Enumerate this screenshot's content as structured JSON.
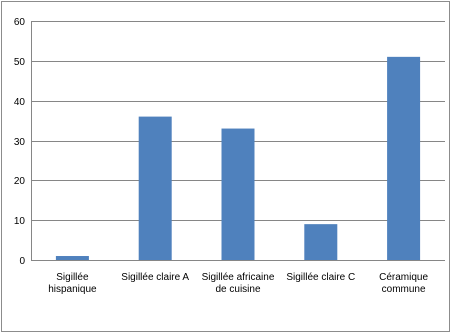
{
  "chart_data": {
    "type": "bar",
    "categories": [
      [
        "Sigillée",
        "hispanique"
      ],
      [
        "Sigillée claire A"
      ],
      [
        "Sigillée africaine",
        "de cuisine"
      ],
      [
        "Sigillée claire C"
      ],
      [
        "Céramique",
        "commune"
      ]
    ],
    "values": [
      1,
      36,
      33,
      9,
      51
    ],
    "ylim": [
      0,
      60
    ],
    "yticks": [
      0,
      10,
      20,
      30,
      40,
      50,
      60
    ],
    "grid": true,
    "legend": "none",
    "bar_color": "#4f81bd",
    "grid_color": "#868686",
    "title": "",
    "xlabel": "",
    "ylabel": ""
  }
}
